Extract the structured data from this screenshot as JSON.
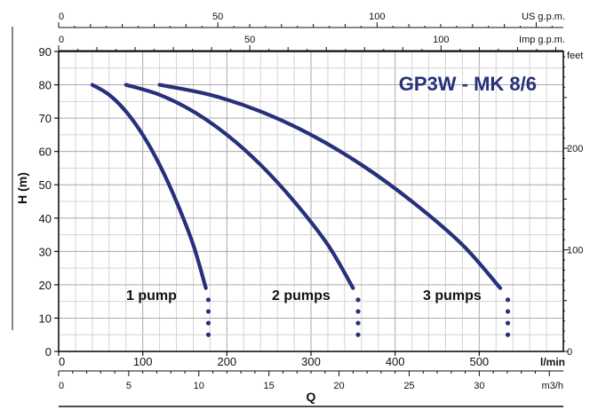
{
  "chart_data": {
    "type": "line",
    "title": "GP3W - MK 8/6",
    "title_color": "#27307a",
    "curve_color": "#27307a",
    "grid": true,
    "xlabel": "Q",
    "ylabel": "H (m)",
    "x_unit": "l/min",
    "xlim": [
      0,
      600
    ],
    "ylim": [
      0,
      90
    ],
    "x_ticks": [
      0,
      100,
      200,
      300,
      400,
      500
    ],
    "y_ticks": [
      0,
      10,
      20,
      30,
      40,
      50,
      60,
      70,
      80,
      90
    ],
    "top_axis_us": {
      "unit": "US g.p.m.",
      "ticks": [
        0,
        50,
        100
      ],
      "lmin_per_unit": 3.785
    },
    "top_axis_imp": {
      "unit": "Imp g.p.m.",
      "ticks": [
        0,
        50,
        100
      ],
      "lmin_per_unit": 4.546
    },
    "bottom_axis_m3h": {
      "unit": "m3/h",
      "ticks": [
        0,
        5,
        10,
        15,
        20,
        25,
        30
      ],
      "lmin_per_unit": 16.667
    },
    "right_axis_feet": {
      "unit": "feet",
      "ticks": [
        0,
        100,
        200
      ],
      "m_per_unit": 0.3048
    },
    "series": [
      {
        "name": "1 pump",
        "x": [
          40,
          60,
          80,
          100,
          120,
          140,
          160,
          175
        ],
        "y": [
          80,
          77,
          72,
          65,
          56,
          45,
          32,
          19
        ],
        "dotted_drop_x": 178
      },
      {
        "name": "2 pumps",
        "x": [
          80,
          120,
          160,
          200,
          240,
          280,
          320,
          350
        ],
        "y": [
          80,
          77,
          72,
          65,
          56,
          45,
          32,
          19
        ],
        "dotted_drop_x": 356
      },
      {
        "name": "3 pumps",
        "x": [
          120,
          180,
          240,
          300,
          360,
          420,
          480,
          525
        ],
        "y": [
          80,
          77,
          72,
          65,
          56,
          45,
          32,
          19
        ],
        "dotted_drop_x": 534
      }
    ]
  }
}
